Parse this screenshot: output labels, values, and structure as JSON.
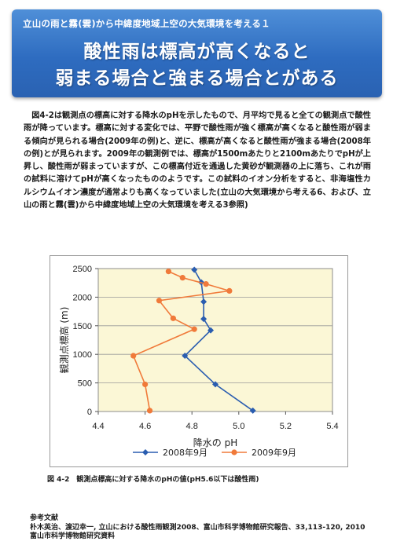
{
  "header": {
    "subtitle": "立山の雨と霧(雲)から中緯度地域上空の大気環境を考える１",
    "title_line1": "酸性雨は標高が高くなると",
    "title_line2": "弱まる場合と強まる場合とがある"
  },
  "body_text": "図4-2は観測点の標高に対する降水のpHを示したもので、月平均で見ると全ての観測点で酸性雨が降っています。標高に対する変化では、平野で酸性雨が強く標高が高くなると酸性雨が弱まる傾向が見られる場合(2009年の例)と、逆に、標高が高くなると酸性雨が強まる場合(2008年の例)とが見られます。2009年の観測例では、標高が1500mあたりと2100mあたりでpHが上昇し、酸性雨が弱まっていますが、この標高付近を通過した黄砂が観測器の上に落ち、これが雨の試料に溶けてpHが高くなったもののようです。この試料のイオン分析をすると、非海塩性カルシウムイオン濃度が通常よりも高くなっていました(立山の大気環境から考える6、および、立山の雨と霧(雲)から中緯度地域上空の大気環境を考える3参照)",
  "chart_data": {
    "type": "line",
    "xlabel": "降水の pH",
    "ylabel": "観測点標高 (m)",
    "xlim": [
      4.4,
      5.4
    ],
    "ylim": [
      0,
      2500
    ],
    "x_ticks": [
      "4.4",
      "4.6",
      "4.8",
      "5.0",
      "5.2",
      "5.4"
    ],
    "y_ticks": [
      "0",
      "500",
      "1000",
      "1500",
      "2000",
      "2500"
    ],
    "legend_position": "bottom",
    "series": [
      {
        "name": "2008年9月",
        "color": "#2a5db0",
        "marker": "diamond",
        "points": [
          [
            5.06,
            15
          ],
          [
            4.9,
            475
          ],
          [
            4.77,
            975
          ],
          [
            4.88,
            1420
          ],
          [
            4.85,
            1620
          ],
          [
            4.85,
            1920
          ],
          [
            4.84,
            2260
          ],
          [
            4.81,
            2480
          ]
        ]
      },
      {
        "name": "2009年9月",
        "color": "#f07a3a",
        "marker": "circle",
        "points": [
          [
            4.62,
            15
          ],
          [
            4.6,
            475
          ],
          [
            4.55,
            975
          ],
          [
            4.81,
            1440
          ],
          [
            4.72,
            1630
          ],
          [
            4.66,
            1940
          ],
          [
            4.96,
            2110
          ],
          [
            4.86,
            2230
          ],
          [
            4.76,
            2340
          ],
          [
            4.7,
            2450
          ]
        ]
      }
    ]
  },
  "caption": "図 4-2　観測点標高に対する降水のpHの値(pH5.6以下は酸性雨)",
  "references": {
    "heading": "参考文献",
    "line1": "朴木英治、渡辺幸一, 立山における酸性雨観測2008、富山市科学博物館研究報告、33,113-120, 2010",
    "line2": "富山市科学博物館研究資料"
  }
}
